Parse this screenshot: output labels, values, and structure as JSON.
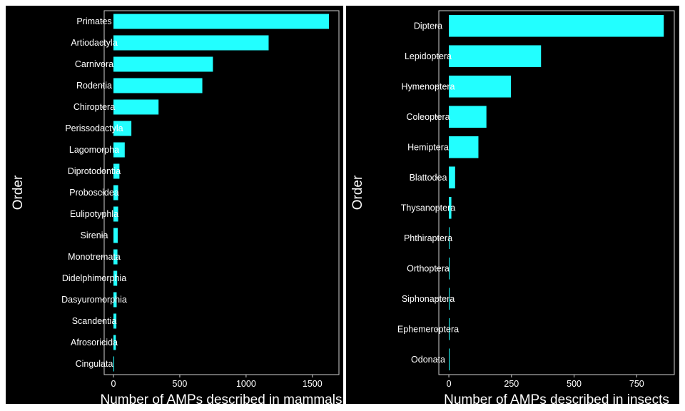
{
  "colors": {
    "background": "#000000",
    "bar": "#22ffff",
    "text": "#ffffff",
    "frame": "#cfcfcf"
  },
  "chart_data": [
    {
      "type": "bar",
      "orientation": "horizontal",
      "xlabel": "Number of AMPs described in mammals",
      "ylabel": "Order",
      "xlim": [
        -70,
        1700
      ],
      "xticks": [
        0,
        500,
        1000,
        1500
      ],
      "categories": [
        "Primates",
        "Artiodactyla",
        "Carnivora",
        "Rodentia",
        "Chiroptera",
        "Perissodactyla",
        "Lagomorpha",
        "Diprotodontia",
        "Proboscidea",
        "Eulipotyphla",
        "Sirenia",
        "Monotremata",
        "Didelphimorphia",
        "Dasyuromorphia",
        "Scandentia",
        "Afrosoricida",
        "Cingulata"
      ],
      "values": [
        1625,
        1170,
        750,
        670,
        340,
        135,
        85,
        45,
        35,
        35,
        32,
        30,
        28,
        24,
        22,
        18,
        3
      ],
      "grid": false,
      "legend": "none"
    },
    {
      "type": "bar",
      "orientation": "horizontal",
      "xlabel": "Number of AMPs described in insects",
      "ylabel": "Order",
      "xlim": [
        -40,
        900
      ],
      "xticks": [
        0,
        250,
        500,
        750
      ],
      "categories": [
        "Diptera",
        "Lepidoptera",
        "Hymenoptera",
        "Coleoptera",
        "Hemiptera",
        "Blattodea",
        "Thysanoptera",
        "Phthiraptera",
        "Orthoptera",
        "Siphonaptera",
        "Ephemeroptera",
        "Odonata"
      ],
      "values": [
        858,
        368,
        248,
        150,
        118,
        25,
        10,
        2,
        2,
        2,
        2,
        2
      ],
      "grid": false,
      "legend": "none"
    }
  ]
}
